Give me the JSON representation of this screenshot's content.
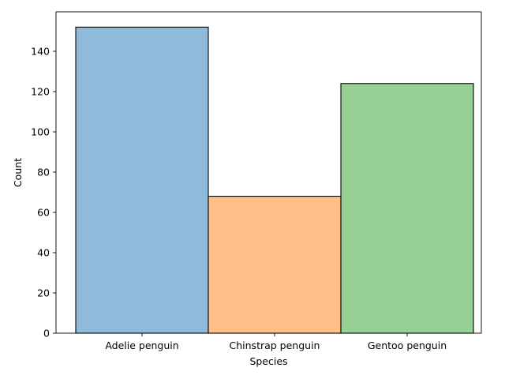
{
  "chart_data": {
    "type": "bar",
    "title": "",
    "xlabel": "Species",
    "ylabel": "Count",
    "categories": [
      "Adelie penguin",
      "Chinstrap penguin",
      "Gentoo penguin"
    ],
    "values": [
      152,
      68,
      124
    ],
    "colors": [
      "#8fbad9",
      "#ffbf87",
      "#96d095"
    ],
    "edge_color": "#000000",
    "ylim": [
      0,
      159.6
    ],
    "yticks": [
      0,
      20,
      40,
      60,
      80,
      100,
      120,
      140
    ],
    "grid": false,
    "legend": "none"
  }
}
